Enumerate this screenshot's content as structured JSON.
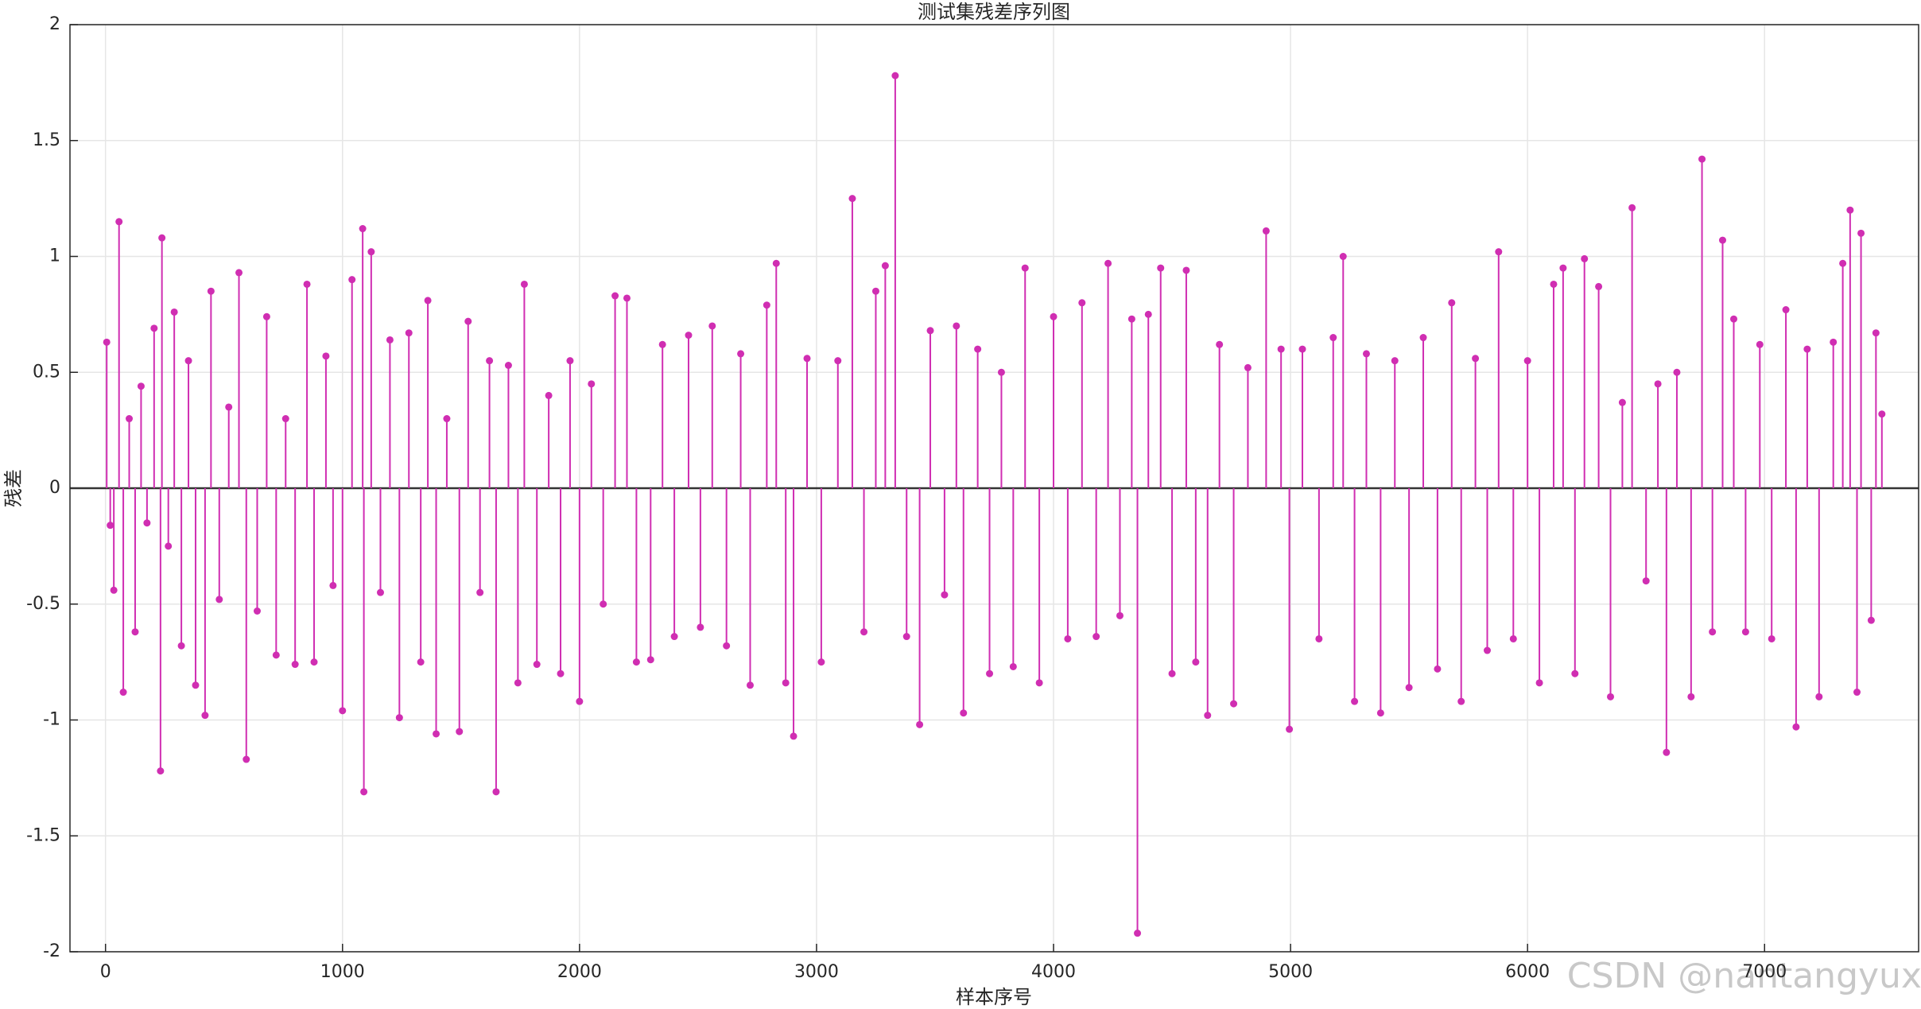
{
  "chart_data": {
    "type": "stem",
    "title": "测试集残差序列图",
    "x_label": "样本序号",
    "y_label": "残差",
    "watermark": "CSDN @nantangyuxi",
    "color": "#d02eb2",
    "grid": true,
    "xlim": [
      -150,
      7650
    ],
    "ylim": [
      -2,
      2
    ],
    "xticks": [
      0,
      1000,
      2000,
      3000,
      4000,
      5000,
      6000,
      7000
    ],
    "yticks": [
      -2,
      -1.5,
      -1,
      -0.5,
      0,
      0.5,
      1,
      1.5,
      2
    ],
    "x": [
      5,
      20,
      35,
      57,
      75,
      100,
      125,
      150,
      175,
      205,
      232,
      238,
      265,
      290,
      320,
      350,
      380,
      420,
      445,
      480,
      520,
      563,
      594,
      640,
      680,
      720,
      760,
      800,
      850,
      880,
      930,
      960,
      1000,
      1040,
      1085,
      1090,
      1121,
      1160,
      1200,
      1240,
      1280,
      1330,
      1360,
      1395,
      1440,
      1493,
      1530,
      1580,
      1620,
      1648,
      1700,
      1740,
      1767,
      1820,
      1870,
      1920,
      1960,
      2000,
      2050,
      2100,
      2150,
      2200,
      2240,
      2300,
      2350,
      2400,
      2460,
      2510,
      2560,
      2620,
      2680,
      2720,
      2790,
      2830,
      2870,
      2903,
      2960,
      3020,
      3090,
      3151,
      3200,
      3250,
      3290,
      3332,
      3380,
      3435,
      3480,
      3540,
      3590,
      3620,
      3680,
      3730,
      3780,
      3830,
      3880,
      3940,
      4000,
      4060,
      4120,
      4180,
      4230,
      4280,
      4330,
      4354,
      4400,
      4452,
      4500,
      4560,
      4600,
      4650,
      4700,
      4760,
      4820,
      4897,
      4960,
      4995,
      5050,
      5120,
      5180,
      5222,
      5270,
      5320,
      5380,
      5440,
      5500,
      5560,
      5620,
      5680,
      5720,
      5780,
      5830,
      5878,
      5940,
      6000,
      6050,
      6110,
      6150,
      6200,
      6240,
      6300,
      6350,
      6400,
      6441,
      6500,
      6550,
      6586,
      6630,
      6690,
      6736,
      6780,
      6823,
      6870,
      6920,
      6980,
      7030,
      7090,
      7133,
      7180,
      7230,
      7290,
      7330,
      7361,
      7390,
      7407,
      7450,
      7470,
      7495
    ],
    "values": [
      0.63,
      -0.16,
      -0.44,
      1.15,
      -0.88,
      0.3,
      -0.62,
      0.44,
      -0.15,
      0.69,
      -1.22,
      1.08,
      -0.25,
      0.76,
      -0.68,
      0.55,
      -0.85,
      -0.98,
      0.85,
      -0.48,
      0.35,
      0.93,
      -1.17,
      -0.53,
      0.74,
      -0.72,
      0.3,
      -0.76,
      0.88,
      -0.75,
      0.57,
      -0.42,
      -0.96,
      0.9,
      1.12,
      -1.31,
      1.02,
      -0.45,
      0.64,
      -0.99,
      0.67,
      -0.75,
      0.81,
      -1.06,
      0.3,
      -1.05,
      0.72,
      -0.45,
      0.55,
      -1.31,
      0.53,
      -0.84,
      0.88,
      -0.76,
      0.4,
      -0.8,
      0.55,
      -0.92,
      0.45,
      -0.5,
      0.83,
      0.82,
      -0.75,
      -0.74,
      0.62,
      -0.64,
      0.66,
      -0.6,
      0.7,
      -0.68,
      0.58,
      -0.85,
      0.79,
      0.97,
      -0.84,
      -1.07,
      0.56,
      -0.75,
      0.55,
      1.25,
      -0.62,
      0.85,
      0.96,
      1.78,
      -0.64,
      -1.02,
      0.68,
      -0.46,
      0.7,
      -0.97,
      0.6,
      -0.8,
      0.5,
      -0.77,
      0.95,
      -0.84,
      0.74,
      -0.65,
      0.8,
      -0.64,
      0.97,
      -0.55,
      0.73,
      -1.92,
      0.75,
      0.95,
      -0.8,
      0.94,
      -0.75,
      -0.98,
      0.62,
      -0.93,
      0.52,
      1.11,
      0.6,
      -1.04,
      0.6,
      -0.65,
      0.65,
      1.0,
      -0.92,
      0.58,
      -0.97,
      0.55,
      -0.86,
      0.65,
      -0.78,
      0.8,
      -0.92,
      0.56,
      -0.7,
      1.02,
      -0.65,
      0.55,
      -0.84,
      0.88,
      0.95,
      -0.8,
      0.99,
      0.87,
      -0.9,
      0.37,
      1.21,
      -0.4,
      0.45,
      -1.14,
      0.5,
      -0.9,
      1.42,
      -0.62,
      1.07,
      0.73,
      -0.62,
      0.62,
      -0.65,
      0.77,
      -1.03,
      0.6,
      -0.9,
      0.63,
      0.97,
      1.2,
      -0.88,
      1.1,
      -0.57,
      0.67,
      0.32
    ]
  }
}
